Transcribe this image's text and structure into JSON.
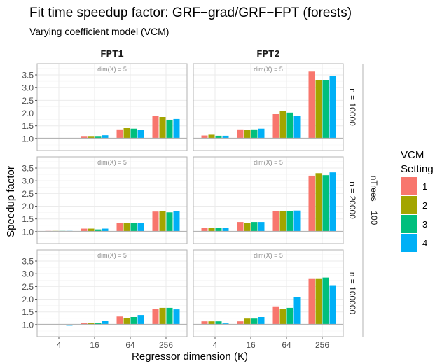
{
  "chart_data": {
    "type": "bar",
    "title": "Fit time speedup factor: GRF−grad/GRF−FPT (forests)",
    "subtitle": "Varying coefficient model (VCM)",
    "xlabel": "Regressor dimension (K)",
    "ylabel": "Speedup factor",
    "categories": [
      "4",
      "16",
      "64",
      "256"
    ],
    "yticks": [
      "1.0",
      "1.5",
      "2.0",
      "2.5",
      "3.0",
      "3.5"
    ],
    "ylim": [
      0.53,
      3.94
    ],
    "baseline": 1.0,
    "grid": true,
    "legend": {
      "title_line1": "VCM",
      "title_line2": "Setting",
      "placement": "right",
      "entries": [
        "1",
        "2",
        "3",
        "4"
      ]
    },
    "colors": [
      "#F8766D",
      "#A3A500",
      "#00BF7D",
      "#00B0F6"
    ],
    "column_facets": [
      "FPT1",
      "FPT2"
    ],
    "row_facets": [
      "n = 10000",
      "n = 20000",
      "n = 100000"
    ],
    "outer_row_facet": "nTrees = 100",
    "panel_annotation": "dim(X) = 5",
    "panels": [
      {
        "row": 0,
        "col": 0,
        "values": [
          [
            1.01,
            1.01,
            1.01,
            1.01
          ],
          [
            1.1,
            1.1,
            1.1,
            1.13
          ],
          [
            1.36,
            1.41,
            1.39,
            1.33
          ],
          [
            1.9,
            1.85,
            1.72,
            1.77
          ]
        ]
      },
      {
        "row": 0,
        "col": 1,
        "values": [
          [
            1.12,
            1.15,
            1.11,
            1.11
          ],
          [
            1.36,
            1.34,
            1.36,
            1.39
          ],
          [
            1.96,
            2.07,
            2.02,
            1.9
          ],
          [
            3.63,
            3.28,
            3.28,
            3.47
          ]
        ]
      },
      {
        "row": 1,
        "col": 0,
        "values": [
          [
            1.03,
            1.03,
            1.03,
            1.03
          ],
          [
            1.12,
            1.12,
            1.09,
            1.12
          ],
          [
            1.35,
            1.35,
            1.35,
            1.35
          ],
          [
            1.79,
            1.81,
            1.76,
            1.81
          ]
        ]
      },
      {
        "row": 1,
        "col": 1,
        "values": [
          [
            1.14,
            1.14,
            1.14,
            1.14
          ],
          [
            1.38,
            1.35,
            1.38,
            1.38
          ],
          [
            1.81,
            1.81,
            1.81,
            1.83
          ],
          [
            3.2,
            3.3,
            3.22,
            3.33
          ]
        ]
      },
      {
        "row": 2,
        "col": 0,
        "values": [
          [
            1.0,
            1.0,
            1.0,
            0.96
          ],
          [
            1.07,
            1.07,
            1.07,
            1.15
          ],
          [
            1.32,
            1.27,
            1.3,
            1.38
          ],
          [
            1.63,
            1.66,
            1.66,
            1.6
          ]
        ]
      },
      {
        "row": 2,
        "col": 1,
        "values": [
          [
            1.13,
            1.13,
            1.13,
            1.05
          ],
          [
            1.13,
            1.24,
            1.24,
            1.3
          ],
          [
            1.72,
            1.63,
            1.66,
            2.09
          ],
          [
            2.82,
            2.82,
            2.85,
            2.55
          ]
        ]
      }
    ]
  }
}
